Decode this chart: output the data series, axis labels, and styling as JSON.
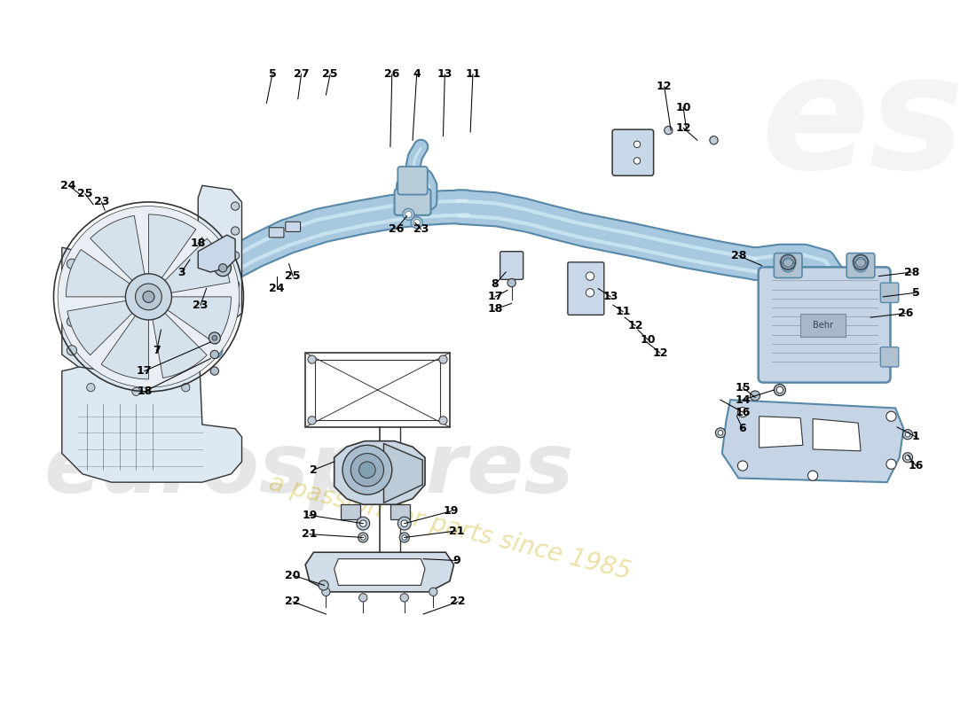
{
  "bg": "#ffffff",
  "pipe_fill": "#a8c8e0",
  "pipe_edge": "#5888a8",
  "pipe_hi": "#d8eef8",
  "line_color": "#333333",
  "metal_fill": "#d8e8f0",
  "metal_edge": "#445566",
  "bracket_fill": "#c8d8e8",
  "wm1": "eurospares",
  "wm2": "a passion for parts since 1985",
  "wm_color": "#bbbbbb",
  "wm_alpha": 0.22,
  "wm_yellow": "#e0d070",
  "wm_yellow_alpha": 0.35
}
